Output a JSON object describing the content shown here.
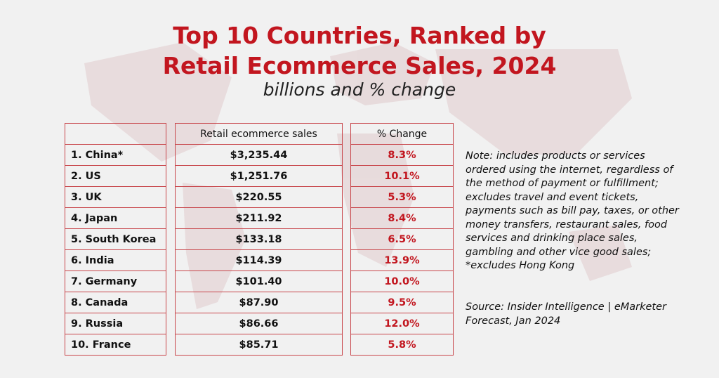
{
  "header": {
    "title_lines": [
      "Top 10 Countries, Ranked by",
      "Retail Ecommerce Sales, 2024"
    ],
    "subtitle": "billions and % change"
  },
  "table": {
    "headers": [
      "Retail ecommerce sales",
      "% Change"
    ],
    "rows": [
      [
        "1. China*",
        "$3,235.44",
        "8.3%"
      ],
      [
        "2. US",
        "$1,251.76",
        "10.1%"
      ],
      [
        "3. UK",
        "$220.55",
        "5.3%"
      ],
      [
        "4. Japan",
        "$211.92",
        "8.4%"
      ],
      [
        "5. South Korea",
        "$133.18",
        "6.5%"
      ],
      [
        "6. India",
        "$114.39",
        "13.9%"
      ],
      [
        "7. Germany",
        "$101.40",
        "10.0%"
      ],
      [
        "8. Canada",
        "$87.90",
        "9.5%"
      ],
      [
        "9. Russia",
        "$86.66",
        "12.0%"
      ],
      [
        "10. France",
        "$85.71",
        "5.8%"
      ]
    ]
  },
  "note": "Note: includes products or services ordered using the internet, regardless of the method of payment or fulfillment; excludes travel and event tickets, payments such as bill pay, taxes, or other money transfers, restaurant sales, food services and drinking place sales, gambling and other vice good sales; *excludes Hong Kong",
  "source": "Source: Insider Intelligence | eMarketer Forecast, Jan 2024"
}
